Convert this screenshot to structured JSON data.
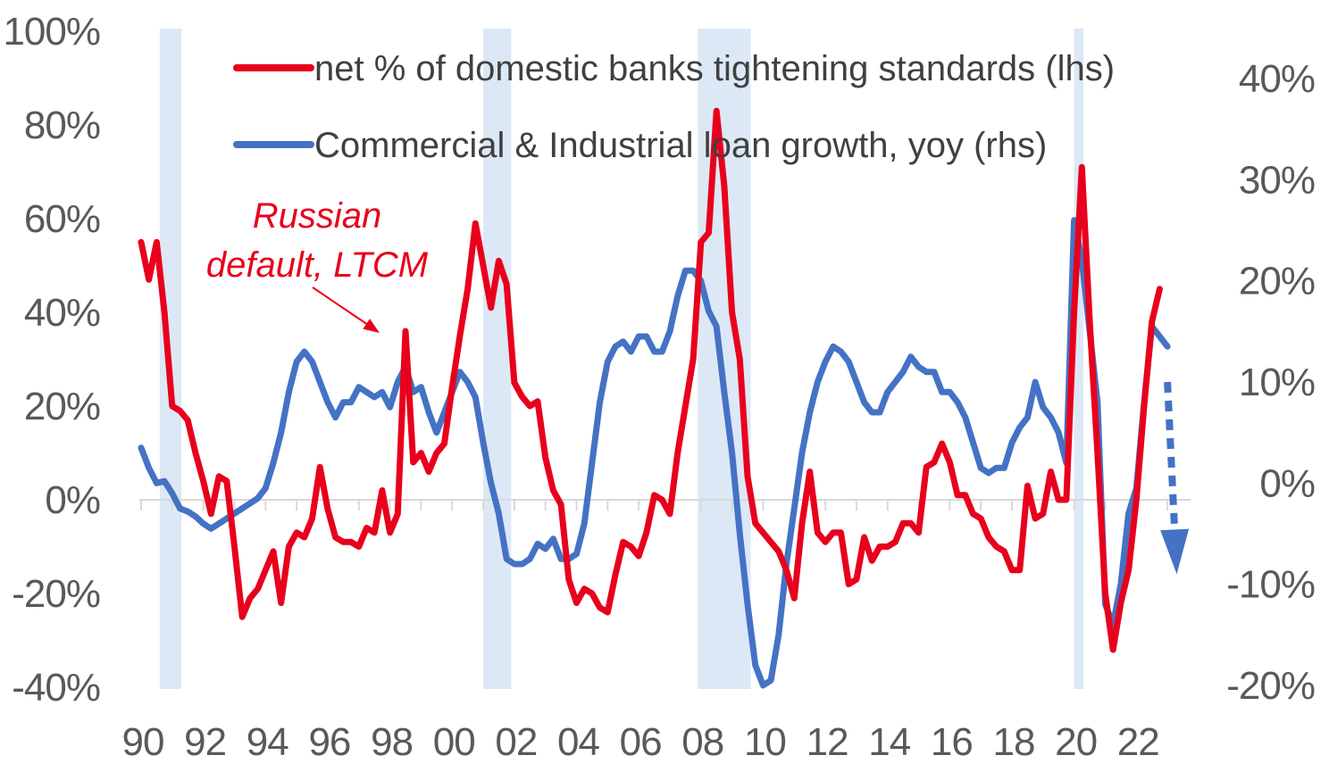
{
  "chart_data": {
    "type": "line",
    "title": "",
    "x_axis": {
      "min": 1990,
      "max": 2023.6,
      "tick_labels": [
        "90",
        "92",
        "94",
        "96",
        "98",
        "00",
        "02",
        "04",
        "06",
        "08",
        "10",
        "12",
        "14",
        "16",
        "18",
        "20",
        "22"
      ],
      "tick_years": [
        1990,
        1992,
        1994,
        1996,
        1998,
        2000,
        2002,
        2004,
        2006,
        2008,
        2010,
        2012,
        2014,
        2016,
        2018,
        2020,
        2022
      ]
    },
    "y_left": {
      "min": -40,
      "max": 100,
      "step": 20,
      "tick_labels": [
        "100%",
        "80%",
        "60%",
        "40%",
        "20%",
        "0%",
        "-20%",
        "-40%"
      ]
    },
    "y_right": {
      "min": -20,
      "max": 40,
      "step": 10,
      "tick_labels": [
        "40%",
        "30%",
        "20%",
        "10%",
        "0%",
        "-10%",
        "-20%"
      ]
    },
    "recessions": [
      [
        1990.6,
        1991.3
      ],
      [
        2001.0,
        2001.9
      ],
      [
        2007.9,
        2009.6
      ],
      [
        2020.0,
        2020.3
      ]
    ],
    "legend": [
      {
        "label": "net % of domestic banks tightening standards (lhs)",
        "color": "#e8001c"
      },
      {
        "label": "Commercial & Industrial loan growth, yoy (rhs)",
        "color": "#4472c4"
      }
    ],
    "annotation": {
      "lines": [
        "Russian",
        "default, LTCM"
      ],
      "target_year": 1998.0,
      "target_value": 35
    },
    "forecast_arrow": {
      "from_year": 2023.0,
      "from_value": 10,
      "to_year": 2023.3,
      "to_value": -9,
      "color": "#4472c4"
    },
    "series": [
      {
        "name": "net % of domestic banks tightening standards (lhs)",
        "axis": "left",
        "color": "#e8001c",
        "points": [
          [
            1990.0,
            55
          ],
          [
            1990.25,
            47
          ],
          [
            1990.5,
            55
          ],
          [
            1990.75,
            40
          ],
          [
            1991.0,
            20
          ],
          [
            1991.25,
            19
          ],
          [
            1991.5,
            17
          ],
          [
            1991.75,
            10
          ],
          [
            1992.0,
            4
          ],
          [
            1992.25,
            -3
          ],
          [
            1992.5,
            5
          ],
          [
            1992.75,
            4
          ],
          [
            1993.0,
            -10
          ],
          [
            1993.25,
            -25
          ],
          [
            1993.5,
            -21
          ],
          [
            1993.75,
            -19
          ],
          [
            1994.0,
            -15
          ],
          [
            1994.25,
            -11
          ],
          [
            1994.5,
            -22
          ],
          [
            1994.75,
            -10
          ],
          [
            1995.0,
            -7
          ],
          [
            1995.25,
            -8
          ],
          [
            1995.5,
            -4
          ],
          [
            1995.75,
            7
          ],
          [
            1996.0,
            -2
          ],
          [
            1996.25,
            -8
          ],
          [
            1996.5,
            -9
          ],
          [
            1996.75,
            -9
          ],
          [
            1997.0,
            -10
          ],
          [
            1997.25,
            -6
          ],
          [
            1997.5,
            -7
          ],
          [
            1997.75,
            2
          ],
          [
            1998.0,
            -7
          ],
          [
            1998.25,
            -3
          ],
          [
            1998.5,
            36
          ],
          [
            1998.75,
            8
          ],
          [
            1999.0,
            10
          ],
          [
            1999.25,
            6
          ],
          [
            1999.5,
            10
          ],
          [
            1999.75,
            12
          ],
          [
            2000.0,
            24
          ],
          [
            2000.25,
            35
          ],
          [
            2000.5,
            45
          ],
          [
            2000.75,
            59
          ],
          [
            2001.0,
            50
          ],
          [
            2001.25,
            41
          ],
          [
            2001.5,
            51
          ],
          [
            2001.75,
            46
          ],
          [
            2002.0,
            25
          ],
          [
            2002.25,
            22
          ],
          [
            2002.5,
            20
          ],
          [
            2002.75,
            21
          ],
          [
            2003.0,
            9
          ],
          [
            2003.25,
            2
          ],
          [
            2003.5,
            -1
          ],
          [
            2003.75,
            -17
          ],
          [
            2004.0,
            -22
          ],
          [
            2004.25,
            -19
          ],
          [
            2004.5,
            -20
          ],
          [
            2004.75,
            -23
          ],
          [
            2005.0,
            -24
          ],
          [
            2005.25,
            -16
          ],
          [
            2005.5,
            -9
          ],
          [
            2005.75,
            -10
          ],
          [
            2006.0,
            -12
          ],
          [
            2006.25,
            -7
          ],
          [
            2006.5,
            1
          ],
          [
            2006.75,
            0
          ],
          [
            2007.0,
            -3
          ],
          [
            2007.25,
            10
          ],
          [
            2007.5,
            20
          ],
          [
            2007.75,
            30
          ],
          [
            2008.0,
            55
          ],
          [
            2008.25,
            57
          ],
          [
            2008.5,
            83
          ],
          [
            2008.75,
            67
          ],
          [
            2009.0,
            40
          ],
          [
            2009.25,
            30
          ],
          [
            2009.5,
            5
          ],
          [
            2009.75,
            -5
          ],
          [
            2010.0,
            -7
          ],
          [
            2010.25,
            -9
          ],
          [
            2010.5,
            -11
          ],
          [
            2010.75,
            -15
          ],
          [
            2011.0,
            -21
          ],
          [
            2011.25,
            -5
          ],
          [
            2011.5,
            6
          ],
          [
            2011.75,
            -7
          ],
          [
            2012.0,
            -9
          ],
          [
            2012.25,
            -7
          ],
          [
            2012.5,
            -7
          ],
          [
            2012.75,
            -18
          ],
          [
            2013.0,
            -17
          ],
          [
            2013.25,
            -8
          ],
          [
            2013.5,
            -13
          ],
          [
            2013.75,
            -10
          ],
          [
            2014.0,
            -10
          ],
          [
            2014.25,
            -9
          ],
          [
            2014.5,
            -5
          ],
          [
            2014.75,
            -5
          ],
          [
            2015.0,
            -7
          ],
          [
            2015.25,
            7
          ],
          [
            2015.5,
            8
          ],
          [
            2015.75,
            12
          ],
          [
            2016.0,
            8
          ],
          [
            2016.25,
            1
          ],
          [
            2016.5,
            1
          ],
          [
            2016.75,
            -3
          ],
          [
            2017.0,
            -4
          ],
          [
            2017.25,
            -8
          ],
          [
            2017.5,
            -10
          ],
          [
            2017.75,
            -11
          ],
          [
            2018.0,
            -15
          ],
          [
            2018.25,
            -15
          ],
          [
            2018.5,
            3
          ],
          [
            2018.75,
            -4
          ],
          [
            2019.0,
            -3
          ],
          [
            2019.25,
            6
          ],
          [
            2019.5,
            0
          ],
          [
            2019.75,
            0
          ],
          [
            2020.0,
            40
          ],
          [
            2020.25,
            71
          ],
          [
            2020.5,
            38
          ],
          [
            2020.75,
            10
          ],
          [
            2021.0,
            -20
          ],
          [
            2021.25,
            -32
          ],
          [
            2021.5,
            -22
          ],
          [
            2021.75,
            -15
          ],
          [
            2022.0,
            0
          ],
          [
            2022.25,
            20
          ],
          [
            2022.5,
            38
          ],
          [
            2022.75,
            45
          ]
        ]
      },
      {
        "name": "Commercial & Industrial loan growth, yoy (rhs)",
        "axis": "right",
        "color": "#4472c4",
        "points": [
          [
            1990.0,
            3.5
          ],
          [
            1990.25,
            1.5
          ],
          [
            1990.5,
            0
          ],
          [
            1990.75,
            0.2
          ],
          [
            1991.0,
            -1
          ],
          [
            1991.25,
            -2.5
          ],
          [
            1991.5,
            -2.8
          ],
          [
            1991.75,
            -3.3
          ],
          [
            1992.0,
            -4
          ],
          [
            1992.25,
            -4.5
          ],
          [
            1992.5,
            -4
          ],
          [
            1992.75,
            -3.5
          ],
          [
            1993.0,
            -3
          ],
          [
            1993.25,
            -2.5
          ],
          [
            1993.5,
            -2
          ],
          [
            1993.75,
            -1.5
          ],
          [
            1994.0,
            -0.5
          ],
          [
            1994.25,
            2
          ],
          [
            1994.5,
            5
          ],
          [
            1994.75,
            9
          ],
          [
            1995.0,
            12
          ],
          [
            1995.25,
            13
          ],
          [
            1995.5,
            12
          ],
          [
            1995.75,
            10
          ],
          [
            1996.0,
            8
          ],
          [
            1996.25,
            6.5
          ],
          [
            1996.5,
            8
          ],
          [
            1996.75,
            8
          ],
          [
            1997.0,
            9.5
          ],
          [
            1997.25,
            9
          ],
          [
            1997.5,
            8.5
          ],
          [
            1997.75,
            9
          ],
          [
            1998.0,
            7.5
          ],
          [
            1998.25,
            10
          ],
          [
            1998.5,
            11.5
          ],
          [
            1998.75,
            9
          ],
          [
            1999.0,
            9.5
          ],
          [
            1999.25,
            7
          ],
          [
            1999.5,
            5
          ],
          [
            1999.75,
            7
          ],
          [
            2000.0,
            9
          ],
          [
            2000.25,
            11
          ],
          [
            2000.5,
            10
          ],
          [
            2000.75,
            8.5
          ],
          [
            2001.0,
            4
          ],
          [
            2001.25,
            0
          ],
          [
            2001.5,
            -3
          ],
          [
            2001.75,
            -7.5
          ],
          [
            2002.0,
            -8
          ],
          [
            2002.25,
            -8
          ],
          [
            2002.5,
            -7.5
          ],
          [
            2002.75,
            -6
          ],
          [
            2003.0,
            -6.5
          ],
          [
            2003.25,
            -5.5
          ],
          [
            2003.5,
            -7.5
          ],
          [
            2003.75,
            -7.5
          ],
          [
            2004.0,
            -7
          ],
          [
            2004.25,
            -4
          ],
          [
            2004.5,
            2
          ],
          [
            2004.75,
            8
          ],
          [
            2005.0,
            12
          ],
          [
            2005.25,
            13.5
          ],
          [
            2005.5,
            14
          ],
          [
            2005.75,
            13
          ],
          [
            2006.0,
            14.5
          ],
          [
            2006.25,
            14.5
          ],
          [
            2006.5,
            13
          ],
          [
            2006.75,
            13
          ],
          [
            2007.0,
            15
          ],
          [
            2007.25,
            18.5
          ],
          [
            2007.5,
            21
          ],
          [
            2007.75,
            21
          ],
          [
            2008.0,
            20
          ],
          [
            2008.25,
            17
          ],
          [
            2008.5,
            15.5
          ],
          [
            2008.75,
            9
          ],
          [
            2009.0,
            3
          ],
          [
            2009.25,
            -5
          ],
          [
            2009.5,
            -12
          ],
          [
            2009.75,
            -18
          ],
          [
            2010.0,
            -20
          ],
          [
            2010.25,
            -19.5
          ],
          [
            2010.5,
            -15
          ],
          [
            2010.75,
            -8
          ],
          [
            2011.0,
            -2.5
          ],
          [
            2011.25,
            3
          ],
          [
            2011.5,
            7
          ],
          [
            2011.75,
            10
          ],
          [
            2012.0,
            12
          ],
          [
            2012.25,
            13.5
          ],
          [
            2012.5,
            13
          ],
          [
            2012.75,
            12
          ],
          [
            2013.0,
            10
          ],
          [
            2013.25,
            8
          ],
          [
            2013.5,
            7
          ],
          [
            2013.75,
            7
          ],
          [
            2014.0,
            9
          ],
          [
            2014.25,
            10
          ],
          [
            2014.5,
            11
          ],
          [
            2014.75,
            12.5
          ],
          [
            2015.0,
            11.5
          ],
          [
            2015.25,
            11
          ],
          [
            2015.5,
            11
          ],
          [
            2015.75,
            9
          ],
          [
            2016.0,
            9
          ],
          [
            2016.25,
            8
          ],
          [
            2016.5,
            6.5
          ],
          [
            2016.75,
            4
          ],
          [
            2017.0,
            1.5
          ],
          [
            2017.25,
            1
          ],
          [
            2017.5,
            1.5
          ],
          [
            2017.75,
            1.5
          ],
          [
            2018.0,
            4
          ],
          [
            2018.25,
            5.5
          ],
          [
            2018.5,
            6.5
          ],
          [
            2018.75,
            10
          ],
          [
            2019.0,
            7.5
          ],
          [
            2019.25,
            6.5
          ],
          [
            2019.5,
            5
          ],
          [
            2019.75,
            2
          ],
          [
            2020.0,
            26
          ],
          [
            2020.25,
            22
          ],
          [
            2020.5,
            15
          ],
          [
            2020.75,
            8
          ],
          [
            2021.0,
            -12
          ],
          [
            2021.25,
            -14
          ],
          [
            2021.5,
            -10
          ],
          [
            2021.75,
            -3
          ],
          [
            2022.0,
            -0.5
          ],
          [
            2022.25,
            8
          ],
          [
            2022.5,
            15.5
          ],
          [
            2022.75,
            14.5
          ],
          [
            2023.0,
            13.5
          ]
        ]
      }
    ]
  }
}
